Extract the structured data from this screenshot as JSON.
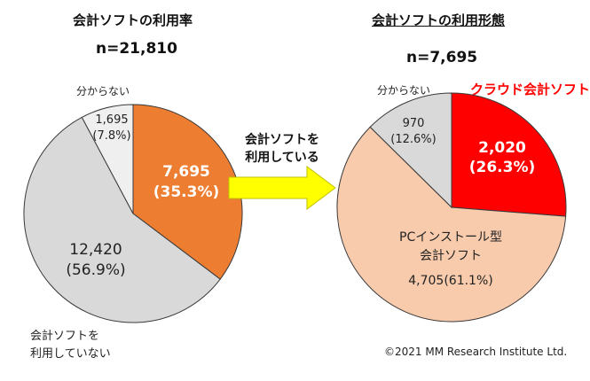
{
  "chart_data": [
    {
      "type": "pie",
      "title": "会計ソフトの利用率",
      "subtitle": "n=21,810",
      "slices": [
        {
          "label": "会計ソフトを利用している",
          "value": 7695,
          "percent": 35.3,
          "value_text": "7,695",
          "percent_text": "(35.3%)",
          "color": "#ED7D31"
        },
        {
          "label": "会計ソフトを利用していない",
          "value": 12420,
          "percent": 56.9,
          "value_text": "12,420",
          "percent_text": "(56.9%)",
          "color": "#D9D9D9"
        },
        {
          "label": "分からない",
          "value": 1695,
          "percent": 7.8,
          "value_text": "1,695",
          "percent_text": "(7.8%)",
          "color": "#EFEFEF"
        }
      ],
      "outside_labels": {
        "unknown": "分からない",
        "not_using_line1": "会計ソフトを",
        "not_using_line2": "利用していない"
      }
    },
    {
      "type": "pie",
      "title": "会計ソフトの利用形態",
      "subtitle": "n=7,695",
      "slices": [
        {
          "label": "クラウド会計ソフト",
          "value": 2020,
          "percent": 26.3,
          "value_text": "2,020",
          "percent_text": "(26.3%)",
          "color": "#FF0000"
        },
        {
          "label": "PCインストール型会計ソフト",
          "value": 4705,
          "percent": 61.1,
          "value_text": "4,705(61.1%)",
          "percent_text": "",
          "color": "#F8CBAD"
        },
        {
          "label": "分からない",
          "value": 970,
          "percent": 12.6,
          "value_text": "970",
          "percent_text": "(12.6%)",
          "color": "#D9D9D9"
        }
      ],
      "outside_labels": {
        "unknown": "分からない",
        "cloud": "クラウド会計ソフト"
      },
      "inside_labels": {
        "pc_line1": "PCインストール型",
        "pc_line2": "会計ソフト"
      }
    }
  ],
  "arrow": {
    "line1": "会計ソフトを",
    "line2": "利用している",
    "color": "#FFFF00"
  },
  "copyright": "©2021 MM Research Institute Ltd."
}
